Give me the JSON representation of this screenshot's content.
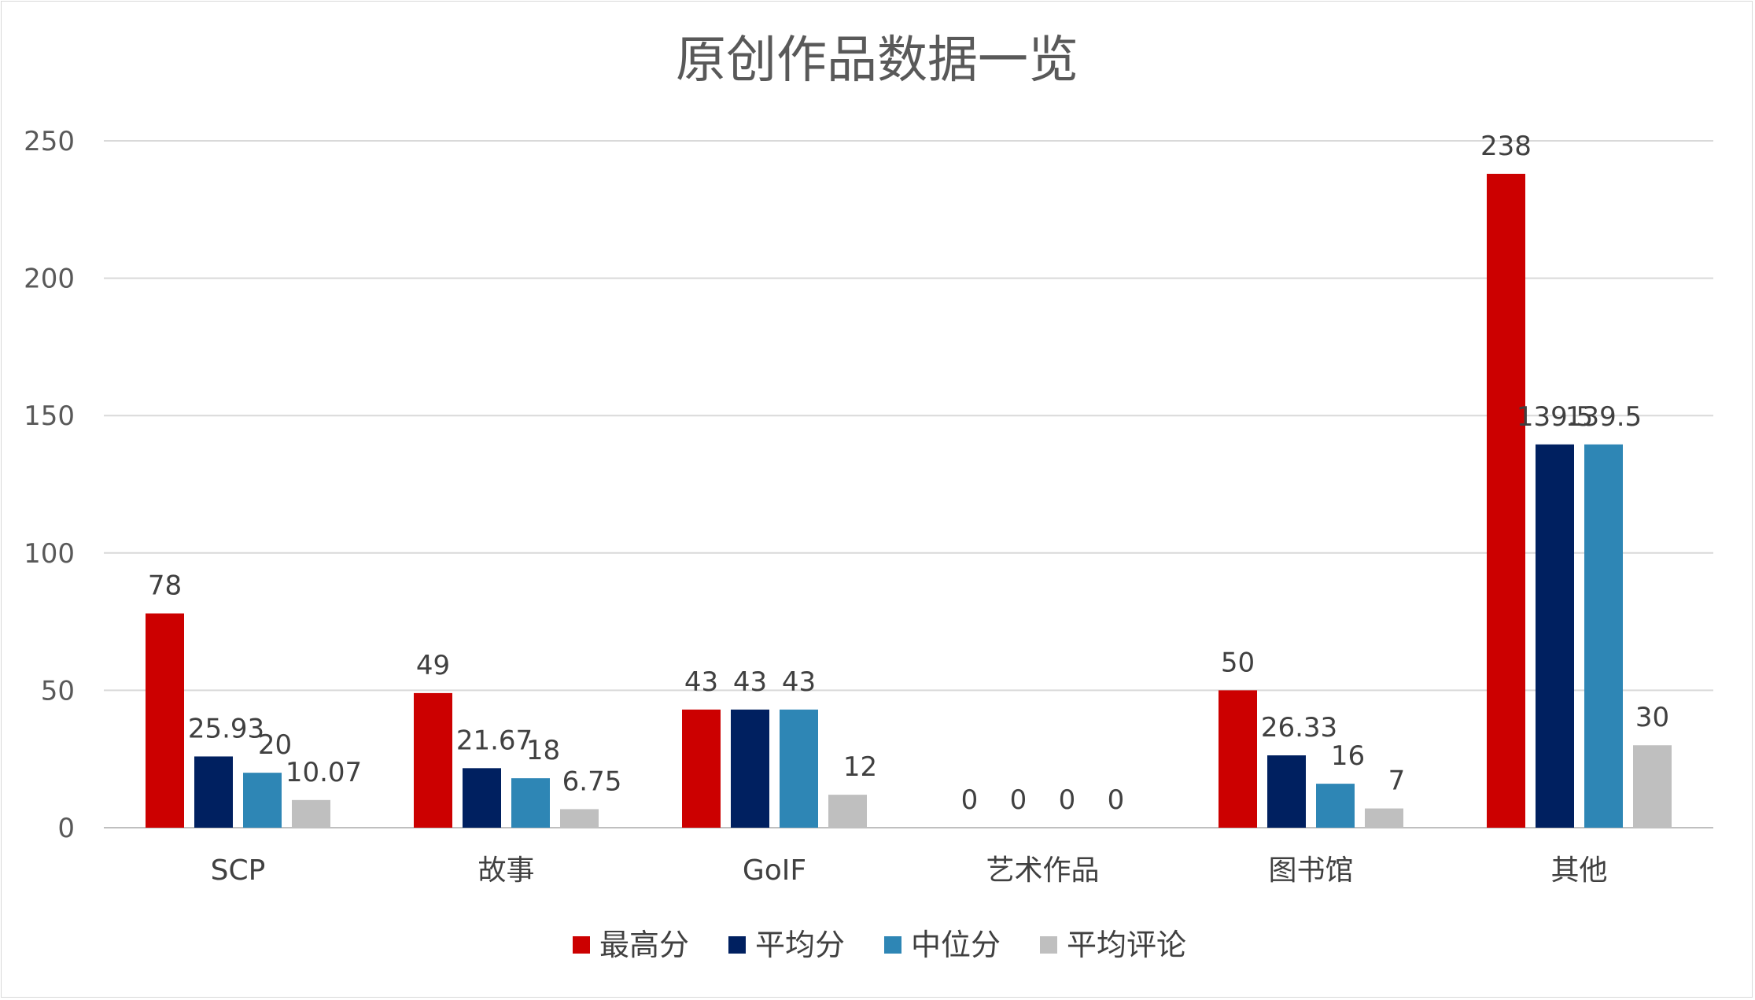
{
  "chart_data": {
    "type": "bar",
    "title": "原创作品数据一览",
    "categories": [
      "SCP",
      "故事",
      "GoIF",
      "艺术作品",
      "图书馆",
      "其他"
    ],
    "series": [
      {
        "name": "最高分",
        "color": "#cc0000",
        "values": [
          78,
          49,
          43,
          0,
          50,
          238
        ]
      },
      {
        "name": "平均分",
        "color": "#002060",
        "values": [
          25.93,
          21.67,
          43,
          0,
          26.33,
          139.5
        ]
      },
      {
        "name": "中位分",
        "color": "#2e86b5",
        "values": [
          20,
          18,
          43,
          0,
          16,
          139.5
        ]
      },
      {
        "name": "平均评论",
        "color": "#bfbfbf",
        "values": [
          10.07,
          6.75,
          12,
          0,
          7,
          30
        ]
      }
    ],
    "ylim": [
      0,
      250
    ],
    "yticks": [
      0,
      50,
      100,
      150,
      200,
      250
    ],
    "grid": true,
    "legend_position": "bottom",
    "xlabel": "",
    "ylabel": ""
  }
}
